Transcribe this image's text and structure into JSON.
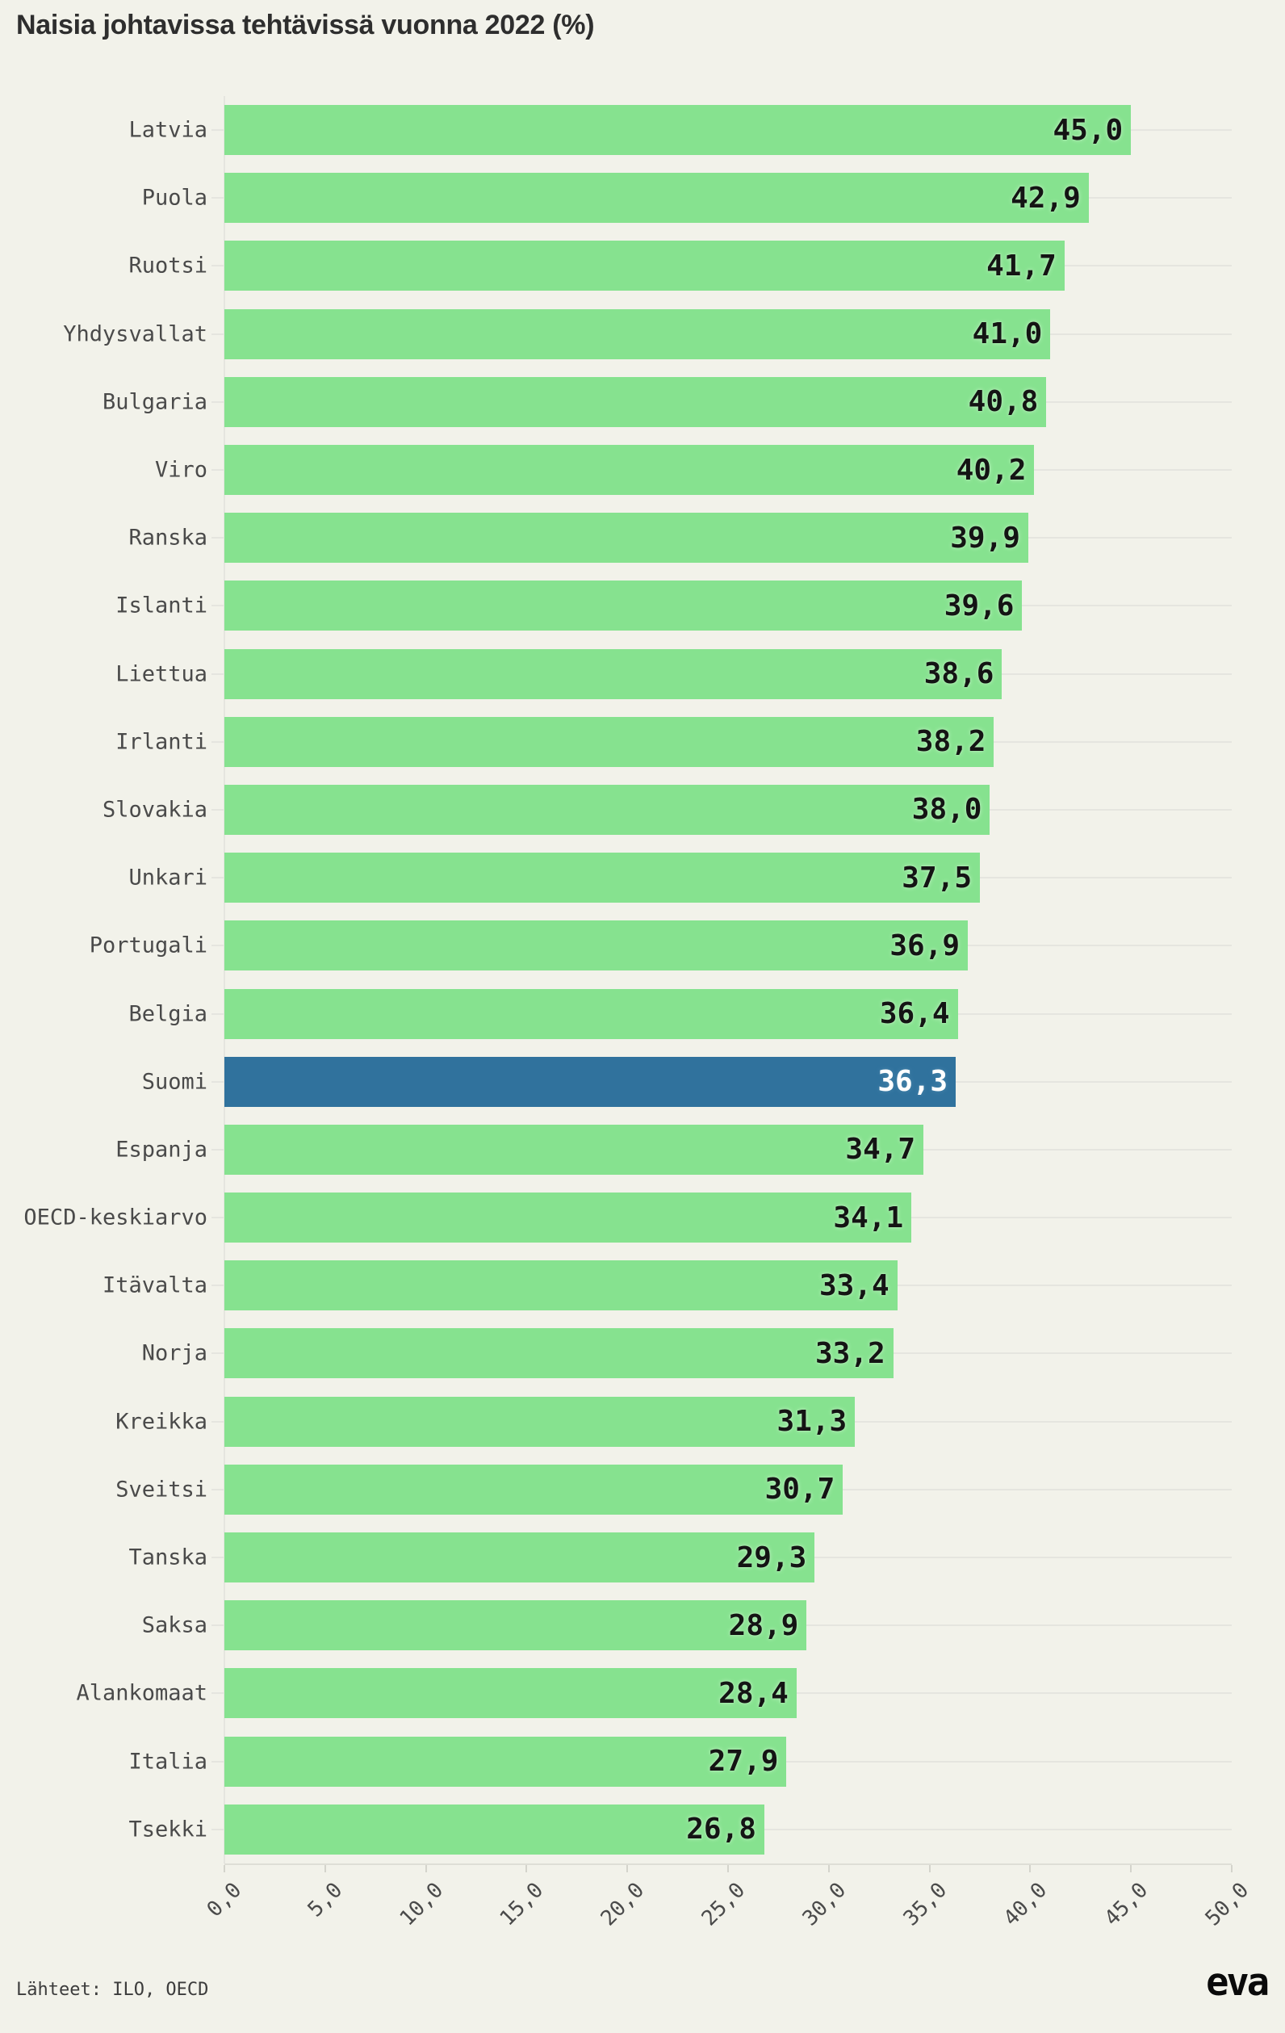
{
  "title": "Naisia johtavissa tehtävissä vuonna 2022 (%)",
  "footer": {
    "sources": "Lähteet: ILO, OECD",
    "logo": "eva"
  },
  "colors": {
    "background": "#f2f2ea",
    "bar": "#86e28f",
    "highlight_bar": "#30729d",
    "value_text": "#141414",
    "value_halo": "#baf0bd",
    "highlight_value_text": "#ffffff",
    "highlight_halo": "#4b87ac",
    "label_text": "#4a4a4a",
    "title_text": "#2e2e2e",
    "grid": "#e5e5df",
    "axis": "#deded6",
    "tick": "#d4d4cc",
    "source_text": "#3c3c3c",
    "logo_text": "#0a0a0a"
  },
  "chart_data": {
    "type": "bar",
    "orientation": "horizontal",
    "title": "Naisia johtavissa tehtävissä vuonna 2022 (%)",
    "categories": [
      "Latvia",
      "Puola",
      "Ruotsi",
      "Yhdysvallat",
      "Bulgaria",
      "Viro",
      "Ranska",
      "Islanti",
      "Liettua",
      "Irlanti",
      "Slovakia",
      "Unkari",
      "Portugali",
      "Belgia",
      "Suomi",
      "Espanja",
      "OECD-keskiarvo",
      "Itävalta",
      "Norja",
      "Kreikka",
      "Sveitsi",
      "Tanska",
      "Saksa",
      "Alankomaat",
      "Italia",
      "Tsekki"
    ],
    "values": [
      45.0,
      42.9,
      41.7,
      41.0,
      40.8,
      40.2,
      39.9,
      39.6,
      38.6,
      38.2,
      38.0,
      37.5,
      36.9,
      36.4,
      36.3,
      34.7,
      34.1,
      33.4,
      33.2,
      31.3,
      30.7,
      29.3,
      28.9,
      28.4,
      27.9,
      26.8
    ],
    "value_labels": [
      "45,0",
      "42,9",
      "41,7",
      "41,0",
      "40,8",
      "40,2",
      "39,9",
      "39,6",
      "38,6",
      "38,2",
      "38,0",
      "37,5",
      "36,9",
      "36,4",
      "36,3",
      "34,7",
      "34,1",
      "33,4",
      "33,2",
      "31,3",
      "30,7",
      "29,3",
      "28,9",
      "28,4",
      "27,9",
      "26,8"
    ],
    "highlight_category": "Suomi",
    "highlight_index": 14,
    "xlim": [
      0,
      50
    ],
    "xticks": [
      0,
      5,
      10,
      15,
      20,
      25,
      30,
      35,
      40,
      45,
      50
    ],
    "xtick_labels": [
      "0,0",
      "5,0",
      "10,0",
      "15,0",
      "20,0",
      "25,0",
      "30,0",
      "35,0",
      "40,0",
      "45,0",
      "50,0"
    ],
    "grid": true,
    "legend": false,
    "sources": "Lähteet: ILO, OECD"
  }
}
